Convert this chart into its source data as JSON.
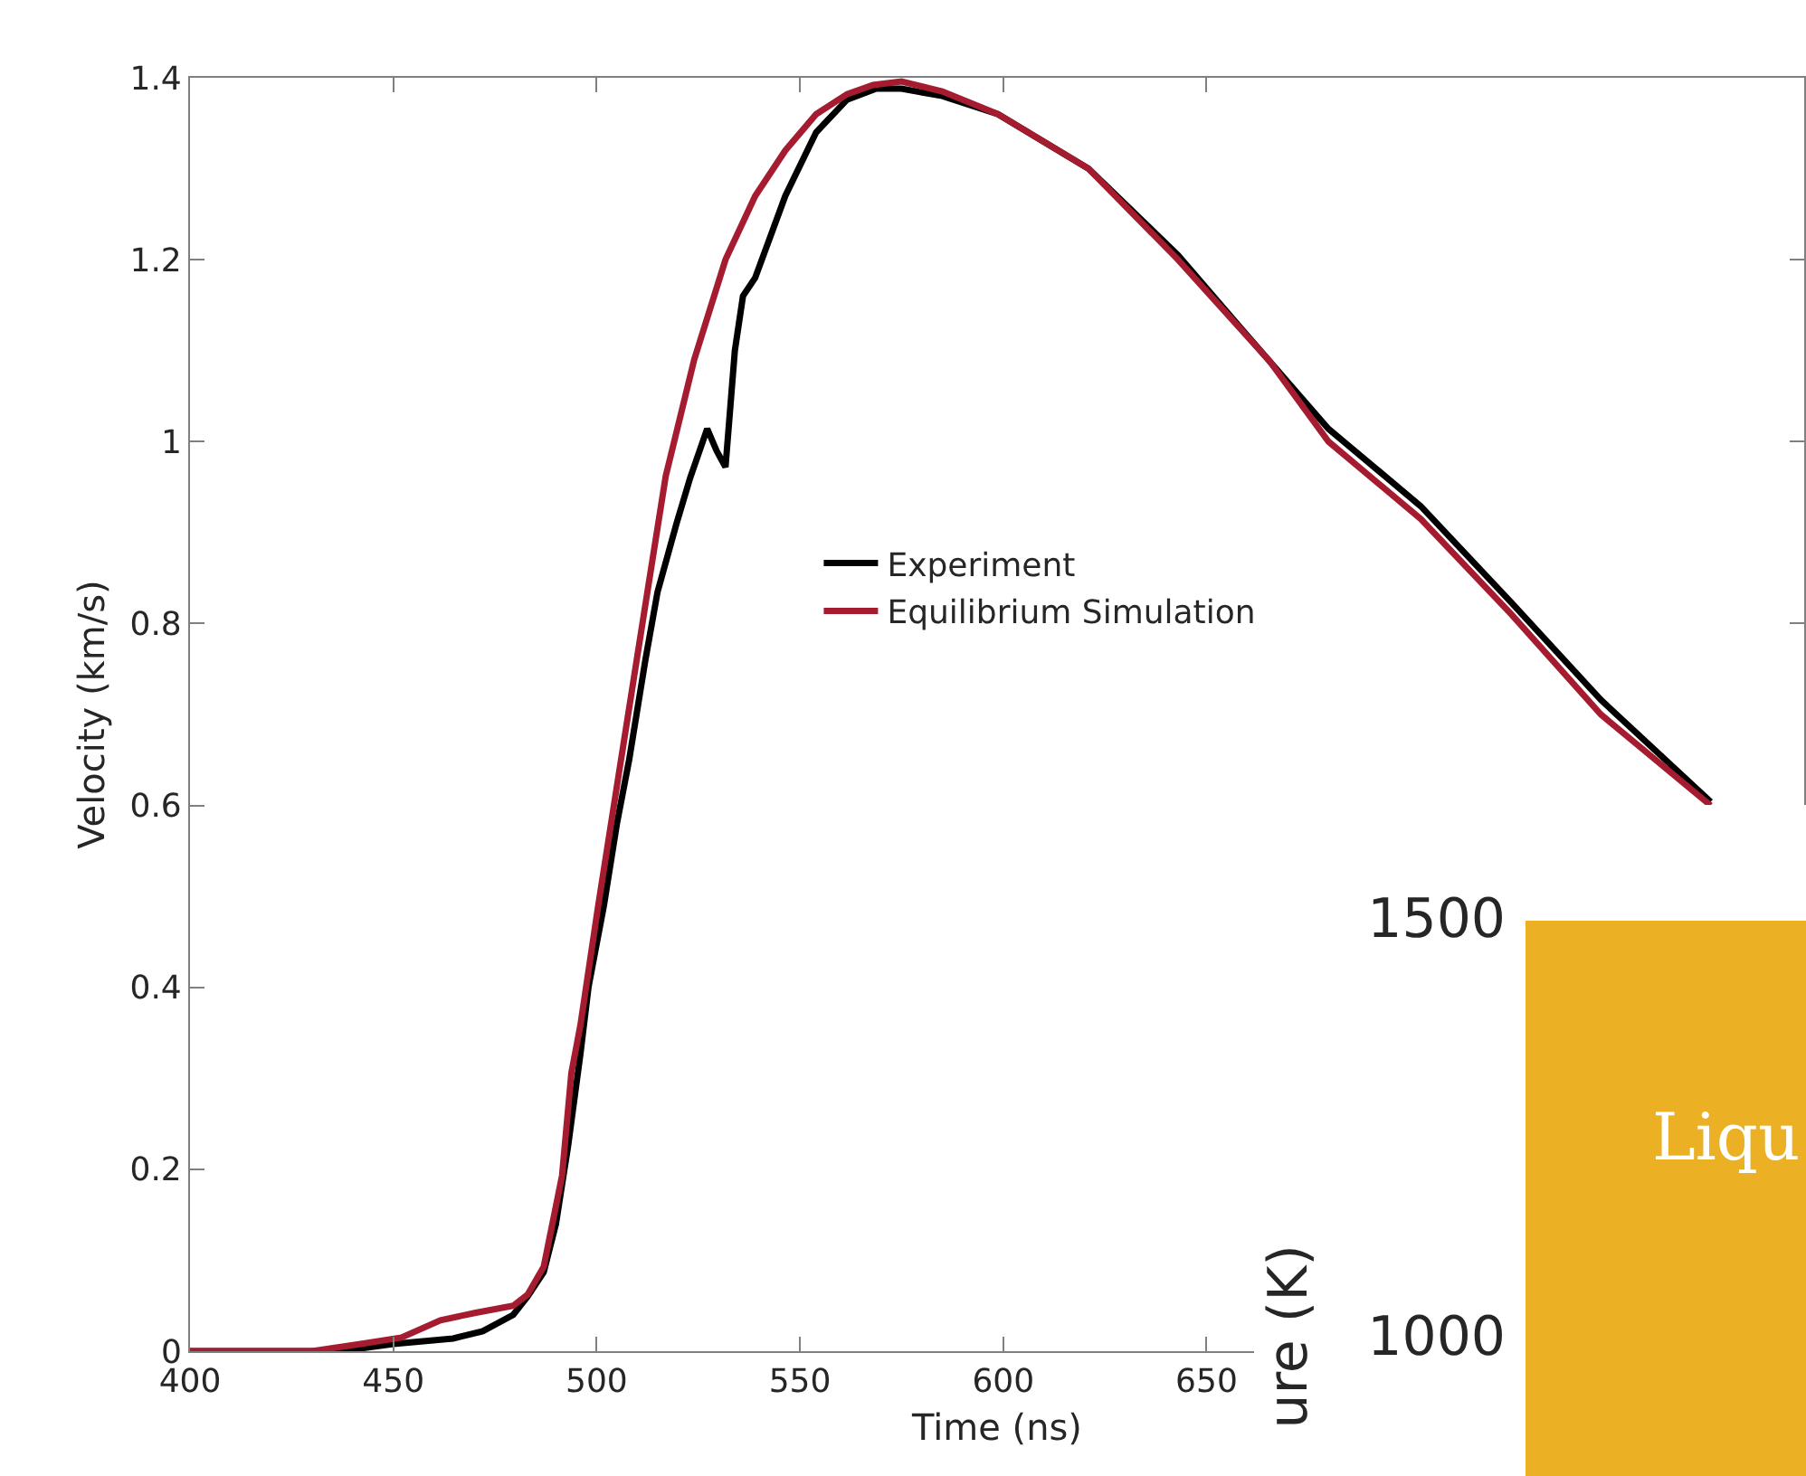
{
  "chart_data": [
    {
      "type": "line",
      "xlabel": "Time (ns)",
      "ylabel": "Velocity (km/s)",
      "xlim": [
        400,
        797
      ],
      "xticks": [
        400,
        450,
        500,
        550,
        600,
        650
      ],
      "ylim": [
        0,
        1.4
      ],
      "yticks": [
        0,
        {
          "value": 0.2,
          "label": "0.2"
        },
        {
          "value": 0.4,
          "label": "0.4"
        },
        {
          "value": 0.6,
          "label": "0.6"
        },
        {
          "value": 0.8,
          "label": "0.8"
        },
        1,
        {
          "value": 1.2,
          "label": "1.2"
        },
        {
          "value": 1.4,
          "label": "1.4"
        }
      ],
      "grid": false,
      "legend": "center",
      "marker": "none",
      "line_style": "solid",
      "series": [
        {
          "name": "Experiment",
          "color": "#000000",
          "x": [
            400,
            430,
            442,
            450,
            464.7,
            472,
            479.5,
            483,
            487,
            490,
            493,
            496,
            498,
            501.8,
            505,
            508,
            512,
            515,
            519.6,
            523,
            527.2,
            529.5,
            531.7,
            534,
            536,
            539,
            546.4,
            554,
            561.6,
            568.8,
            575,
            585,
            598.7,
            621,
            643,
            658,
            680,
            702.7,
            725,
            747,
            774
          ],
          "values": [
            0,
            0,
            0.003,
            0.008,
            0.014,
            0.022,
            0.04,
            0.06,
            0.087,
            0.14,
            0.226,
            0.326,
            0.4,
            0.49,
            0.58,
            0.65,
            0.76,
            0.835,
            0.909,
            0.96,
            1.014,
            0.99,
            0.972,
            1.1,
            1.16,
            1.18,
            1.27,
            1.34,
            1.376,
            1.388,
            1.388,
            1.38,
            1.36,
            1.3,
            1.205,
            1.127,
            1.014,
            0.929,
            0.823,
            0.716,
            0.604
          ]
        },
        {
          "name": "Equilibrium Simulation",
          "color": "#a51c30",
          "x": [
            400,
            430,
            442,
            452,
            461.6,
            470,
            479.5,
            483,
            487,
            491.5,
            493.8,
            496,
            500.4,
            506,
            512.5,
            517,
            524,
            531.7,
            539,
            546.4,
            554,
            561.6,
            568,
            575,
            585,
            598.7,
            621,
            643,
            665.6,
            680,
            702.7,
            725,
            747,
            774
          ],
          "values": [
            0,
            0,
            0.008,
            0.015,
            0.034,
            0.042,
            0.05,
            0.062,
            0.093,
            0.193,
            0.306,
            0.358,
            0.49,
            0.65,
            0.835,
            0.962,
            1.09,
            1.2,
            1.27,
            1.32,
            1.36,
            1.382,
            1.392,
            1.396,
            1.385,
            1.36,
            1.3,
            1.2,
            1.088,
            1.0,
            0.915,
            0.81,
            0.7,
            0.6
          ]
        }
      ]
    },
    {
      "type": "other",
      "ylabel": "ure (K)",
      "annotations": [
        "1500",
        "1000",
        "Liqu"
      ]
    }
  ]
}
